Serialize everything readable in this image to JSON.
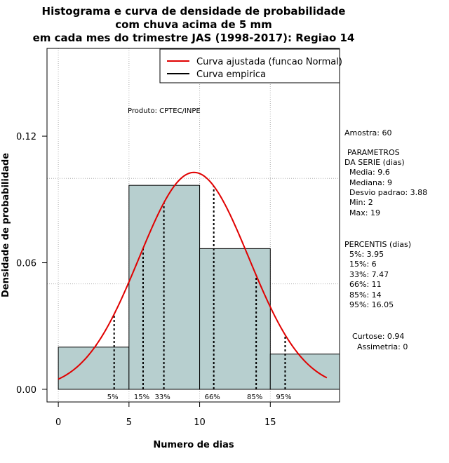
{
  "chart_data": {
    "type": "bar",
    "title_lines": [
      "Histograma e curva de densidade de probabilidade",
      "com chuva acima de 5 mm",
      "em cada mes do trimestre JAS (1998-2017): Regiao 14"
    ],
    "xlabel": "Numero de dias",
    "ylabel": "Densidade de probabilidade",
    "xlim": [
      -0.8,
      19.9
    ],
    "ylim": [
      -0.006,
      0.1616
    ],
    "x_ticks": [
      0,
      5,
      10,
      15
    ],
    "y_ticks": [
      0.0,
      0.06,
      0.12
    ],
    "y_tick_labels": [
      "0.00",
      "0.06",
      "0.12"
    ],
    "grid_x": [
      0,
      5,
      10,
      15
    ],
    "grid_y": [
      0.05,
      0.1
    ],
    "bins": [
      {
        "start": 0,
        "end": 5,
        "density": 0.02
      },
      {
        "start": 5,
        "end": 10,
        "density": 0.0967
      },
      {
        "start": 10,
        "end": 15,
        "density": 0.0667
      },
      {
        "start": 15,
        "end": 20,
        "density": 0.0167
      }
    ],
    "bar_color": "#b7cfcf",
    "curve_color": "#e00000",
    "normal_curve": {
      "mean": 9.6,
      "sd": 3.88,
      "x_from": 0,
      "x_to": 19
    },
    "percentile_lines": [
      {
        "label": "5%",
        "x": 3.95
      },
      {
        "label": "15%",
        "x": 6
      },
      {
        "label": "33%",
        "x": 7.47
      },
      {
        "label": "66%",
        "x": 11
      },
      {
        "label": "85%",
        "x": 14
      },
      {
        "label": "95%",
        "x": 16.05
      }
    ],
    "legend": {
      "position": "top-right",
      "entries": [
        {
          "label": "Curva ajustada (funcao Normal)",
          "color": "#e00000"
        },
        {
          "label": "Curva empirica",
          "color": "#000000"
        }
      ]
    },
    "annotation": "Produto: CPTEC/INPE"
  },
  "stats_panel": {
    "sample": "Amostra: 60",
    "params_title_1": "PARAMETROS",
    "params_title_2": "DA SERIE (dias)",
    "mean": "Media: 9.6",
    "median": "Mediana: 9",
    "sd": "Desvio padrao: 3.88",
    "min": "Min: 2",
    "max": "Max: 19",
    "percentis_title": "PERCENTIS (dias)",
    "p5": "5%: 3.95",
    "p15": "15%: 6",
    "p33": "33%: 7.47",
    "p66": "66%: 11",
    "p85": "85%: 14",
    "p95": "95%: 16.05",
    "kurtosis": "Curtose: 0.94",
    "skewness": "Assimetria: 0"
  }
}
